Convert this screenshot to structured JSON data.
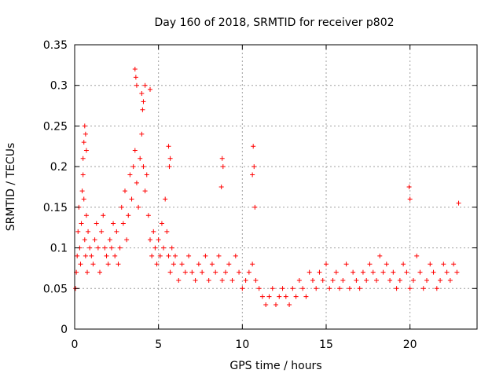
{
  "chart_data": {
    "type": "scatter",
    "title": "Day 160 of 2018, SRMTID for receiver p802",
    "xlabel": "GPS time / hours",
    "ylabel": "SRMTID / TECUs",
    "xlim": [
      0,
      24
    ],
    "ylim": [
      0,
      0.35
    ],
    "xticks": [
      0,
      5,
      10,
      15,
      20
    ],
    "xtick_labels": [
      "0",
      "5",
      "10",
      "15",
      "20"
    ],
    "yticks": [
      0,
      0.05,
      0.1,
      0.15,
      0.2,
      0.25,
      0.3,
      0.35
    ],
    "ytick_labels": [
      "0",
      "0.05",
      "0.1",
      "0.15",
      "0.2",
      "0.25",
      "0.3",
      "0.35"
    ],
    "grid": true,
    "marker": "+",
    "color": "#ff0000",
    "series": [
      {
        "name": "SRMTID",
        "x": [
          0.05,
          0.1,
          0.15,
          0.2,
          0.25,
          0.3,
          0.35,
          0.4,
          0.45,
          0.5,
          0.55,
          0.6,
          0.65,
          0.7,
          0.75,
          0.8,
          0.9,
          1.0,
          1.1,
          1.2,
          1.3,
          1.4,
          1.5,
          1.6,
          1.7,
          1.8,
          1.9,
          2.0,
          2.1,
          2.2,
          2.3,
          2.4,
          2.5,
          2.6,
          2.7,
          2.8,
          2.9,
          3.0,
          3.1,
          3.2,
          3.3,
          3.4,
          3.5,
          3.6,
          3.7,
          3.8,
          3.9,
          4.0,
          4.1,
          4.2,
          4.3,
          4.4,
          4.5,
          4.6,
          4.7,
          4.8,
          4.9,
          5.0,
          5.1,
          5.2,
          5.3,
          5.4,
          5.5,
          5.6,
          5.7,
          5.8,
          5.9,
          6.0,
          6.2,
          6.4,
          6.6,
          6.8,
          7.0,
          7.2,
          7.4,
          7.6,
          7.8,
          8.0,
          8.2,
          8.4,
          8.6,
          8.8,
          9.0,
          9.2,
          9.4,
          9.6,
          9.8,
          10.0,
          10.2,
          10.4,
          10.6,
          10.8,
          11.0,
          11.2,
          11.4,
          11.6,
          11.8,
          12.0,
          12.2,
          12.4,
          12.6,
          12.8,
          13.0,
          13.2,
          13.4,
          13.6,
          13.8,
          14.0,
          14.2,
          14.4,
          14.6,
          14.8,
          15.0,
          15.2,
          15.4,
          15.6,
          15.8,
          16.0,
          16.2,
          16.4,
          16.6,
          16.8,
          17.0,
          17.2,
          17.4,
          17.6,
          17.8,
          18.0,
          18.2,
          18.4,
          18.6,
          18.8,
          19.0,
          19.2,
          19.4,
          19.6,
          19.8,
          20.0,
          20.2,
          20.4,
          20.6,
          20.8,
          21.0,
          21.2,
          21.4,
          21.6,
          21.8,
          22.0,
          22.2,
          22.4,
          22.6,
          22.8,
          0.6,
          0.65,
          0.55,
          0.7,
          0.5,
          3.6,
          3.7,
          3.65,
          4.0,
          4.1,
          4.05,
          4.2,
          4.5,
          5.6,
          5.7,
          5.65,
          8.8,
          8.85,
          8.75,
          10.65,
          10.7,
          10.6,
          10.75,
          19.95,
          20.0,
          22.9
        ],
        "y": [
          0.05,
          0.07,
          0.09,
          0.12,
          0.15,
          0.1,
          0.08,
          0.13,
          0.17,
          0.19,
          0.16,
          0.11,
          0.09,
          0.14,
          0.07,
          0.12,
          0.1,
          0.09,
          0.08,
          0.11,
          0.13,
          0.1,
          0.07,
          0.12,
          0.14,
          0.1,
          0.09,
          0.08,
          0.11,
          0.1,
          0.13,
          0.09,
          0.12,
          0.08,
          0.1,
          0.15,
          0.13,
          0.17,
          0.11,
          0.14,
          0.19,
          0.16,
          0.2,
          0.22,
          0.18,
          0.15,
          0.21,
          0.24,
          0.2,
          0.17,
          0.19,
          0.14,
          0.11,
          0.09,
          0.12,
          0.1,
          0.08,
          0.11,
          0.09,
          0.13,
          0.1,
          0.16,
          0.12,
          0.09,
          0.07,
          0.1,
          0.08,
          0.09,
          0.06,
          0.08,
          0.07,
          0.09,
          0.07,
          0.06,
          0.08,
          0.07,
          0.09,
          0.06,
          0.08,
          0.07,
          0.09,
          0.06,
          0.07,
          0.08,
          0.06,
          0.09,
          0.07,
          0.05,
          0.06,
          0.07,
          0.08,
          0.06,
          0.05,
          0.04,
          0.03,
          0.04,
          0.05,
          0.03,
          0.04,
          0.05,
          0.04,
          0.03,
          0.05,
          0.04,
          0.06,
          0.05,
          0.04,
          0.07,
          0.06,
          0.05,
          0.07,
          0.06,
          0.08,
          0.05,
          0.06,
          0.07,
          0.05,
          0.06,
          0.08,
          0.05,
          0.07,
          0.06,
          0.05,
          0.07,
          0.06,
          0.08,
          0.07,
          0.06,
          0.09,
          0.07,
          0.08,
          0.06,
          0.07,
          0.05,
          0.06,
          0.08,
          0.07,
          0.05,
          0.06,
          0.09,
          0.07,
          0.05,
          0.06,
          0.08,
          0.07,
          0.05,
          0.06,
          0.08,
          0.07,
          0.06,
          0.08,
          0.07,
          0.25,
          0.24,
          0.23,
          0.22,
          0.21,
          0.32,
          0.3,
          0.31,
          0.29,
          0.28,
          0.27,
          0.3,
          0.295,
          0.225,
          0.21,
          0.2,
          0.21,
          0.2,
          0.175,
          0.225,
          0.2,
          0.19,
          0.15,
          0.175,
          0.16,
          0.155
        ]
      }
    ]
  }
}
